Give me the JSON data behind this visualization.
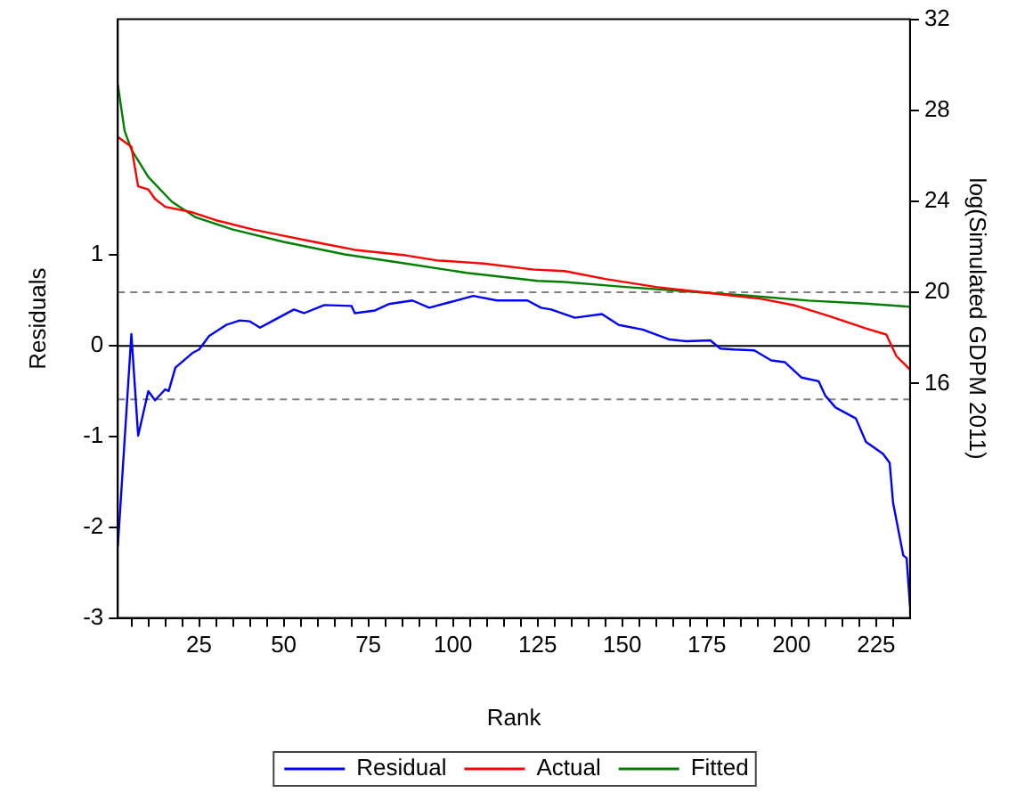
{
  "chart_data": {
    "type": "line",
    "xlabel": "Rank",
    "ylabel": "Residuals",
    "y2label": "log(Simulated GDPM 2011)",
    "xlim": [
      1,
      235
    ],
    "xticks": [
      {
        "value": 5,
        "label": null
      },
      {
        "value": 10,
        "label": null
      },
      {
        "value": 15,
        "label": null
      },
      {
        "value": 20,
        "label": null
      },
      25,
      {
        "value": 30,
        "label": null
      },
      {
        "value": 35,
        "label": null
      },
      {
        "value": 40,
        "label": null
      },
      {
        "value": 45,
        "label": null
      },
      50,
      {
        "value": 55,
        "label": null
      },
      {
        "value": 60,
        "label": null
      },
      {
        "value": 65,
        "label": null
      },
      {
        "value": 70,
        "label": null
      },
      75,
      {
        "value": 80,
        "label": null
      },
      {
        "value": 85,
        "label": null
      },
      {
        "value": 90,
        "label": null
      },
      {
        "value": 95,
        "label": null
      },
      100,
      {
        "value": 105,
        "label": null
      },
      {
        "value": 110,
        "label": null
      },
      {
        "value": 115,
        "label": null
      },
      {
        "value": 120,
        "label": null
      },
      125,
      {
        "value": 130,
        "label": null
      },
      {
        "value": 135,
        "label": null
      },
      {
        "value": 140,
        "label": null
      },
      {
        "value": 145,
        "label": null
      },
      150,
      {
        "value": 155,
        "label": null
      },
      {
        "value": 160,
        "label": null
      },
      {
        "value": 165,
        "label": null
      },
      {
        "value": 170,
        "label": null
      },
      175,
      {
        "value": 180,
        "label": null
      },
      {
        "value": 185,
        "label": null
      },
      {
        "value": 190,
        "label": null
      },
      {
        "value": 195,
        "label": null
      },
      200,
      {
        "value": 205,
        "label": null
      },
      {
        "value": 210,
        "label": null
      },
      {
        "value": 215,
        "label": null
      },
      {
        "value": 220,
        "label": null
      },
      225,
      {
        "value": 230,
        "label": null
      }
    ],
    "ylim": [
      -3,
      3.6
    ],
    "yticks": [
      -3,
      -2,
      -1,
      0,
      1
    ],
    "y2lim": [
      5.7,
      32
    ],
    "y2ticks": [
      16,
      20,
      24,
      28,
      32
    ],
    "grid": false,
    "legend": "bottom",
    "marker": "none",
    "line_style": "solid",
    "ref_lines": [
      {
        "axis": "y",
        "value": 0,
        "color": "#000000",
        "line_style": "solid"
      },
      {
        "axis": "y",
        "value": 0.59,
        "color": "#808080",
        "line_style": "dashed"
      },
      {
        "axis": "y",
        "value": -0.59,
        "color": "#808080",
        "line_style": "dashed"
      }
    ],
    "series": [
      {
        "name": "Residual",
        "color": "#0000ff",
        "axis": "y",
        "x": [
          1,
          5,
          7,
          10,
          12,
          15,
          16,
          18,
          23,
          25,
          28,
          33,
          37,
          40,
          43,
          46,
          53,
          56,
          62,
          70,
          71,
          77,
          81,
          88,
          93,
          99,
          106,
          113,
          122,
          126,
          129,
          136,
          144,
          149,
          156,
          164,
          169,
          176,
          179,
          183,
          189,
          194,
          198,
          203,
          208,
          210,
          213,
          219,
          222,
          227,
          229,
          230,
          233,
          234,
          235
        ],
        "values": [
          -2.21,
          0.13,
          -0.99,
          -0.5,
          -0.6,
          -0.48,
          -0.5,
          -0.24,
          -0.08,
          -0.04,
          0.11,
          0.23,
          0.28,
          0.27,
          0.2,
          0.26,
          0.4,
          0.36,
          0.45,
          0.44,
          0.36,
          0.39,
          0.46,
          0.5,
          0.42,
          0.48,
          0.55,
          0.5,
          0.5,
          0.42,
          0.4,
          0.31,
          0.35,
          0.23,
          0.18,
          0.07,
          0.05,
          0.06,
          -0.03,
          -0.04,
          -0.05,
          -0.16,
          -0.18,
          -0.35,
          -0.39,
          -0.55,
          -0.68,
          -0.8,
          -1.06,
          -1.19,
          -1.29,
          -1.73,
          -2.31,
          -2.34,
          -2.87
        ]
      },
      {
        "name": "Actual",
        "color": "#ff0000",
        "axis": "y2",
        "x": [
          1,
          5,
          7,
          10,
          12,
          15,
          23,
          30,
          41,
          50,
          59,
          71,
          86,
          95,
          109,
          124,
          133,
          145,
          160,
          176,
          191,
          201,
          211,
          222,
          228,
          231,
          235
        ],
        "values": [
          26.83,
          26.4,
          24.66,
          24.52,
          24.11,
          23.76,
          23.52,
          23.17,
          22.76,
          22.49,
          22.22,
          21.87,
          21.63,
          21.41,
          21.27,
          21.0,
          20.94,
          20.59,
          20.24,
          19.97,
          19.72,
          19.43,
          18.97,
          18.42,
          18.15,
          17.2,
          16.61
        ]
      },
      {
        "name": "Fitted",
        "color": "#008000",
        "axis": "y2",
        "x": [
          1,
          3,
          5,
          10,
          17,
          24,
          35,
          50,
          68,
          86,
          104,
          125,
          133,
          151,
          169,
          187,
          205,
          222,
          235
        ],
        "values": [
          29.13,
          27.1,
          26.28,
          25.07,
          23.98,
          23.3,
          22.76,
          22.22,
          21.67,
          21.27,
          20.86,
          20.51,
          20.46,
          20.24,
          20.05,
          19.86,
          19.64,
          19.51,
          19.37
        ]
      }
    ]
  }
}
